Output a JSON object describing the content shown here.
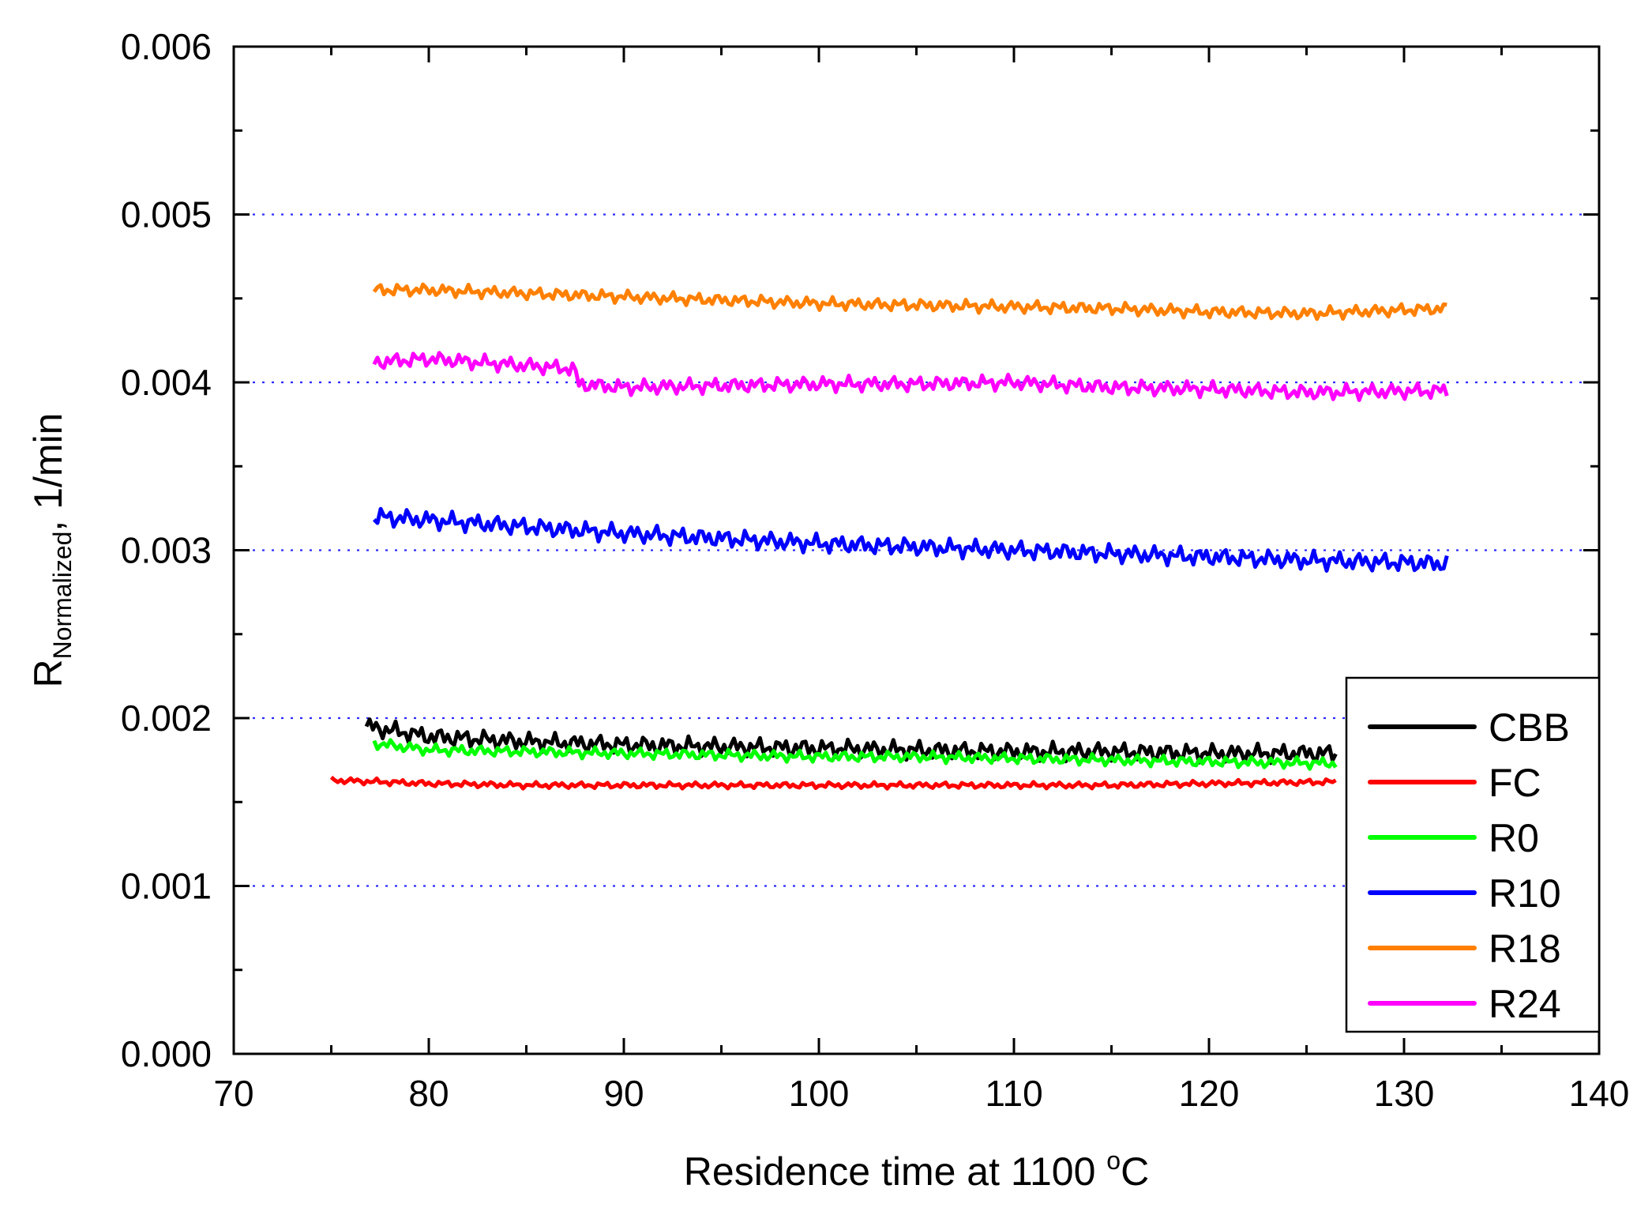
{
  "chart_data": {
    "type": "line",
    "title": "",
    "xlabel": "Residence time at 1100 °C",
    "xlabel_parts": {
      "text": "Residence time at 1100 ",
      "unit_sup": "o",
      "unit": "C"
    },
    "ylabel": "R_Normalized, 1/min",
    "ylabel_parts": {
      "main": "R",
      "sub": "Normalized",
      "tail": ", 1/min"
    },
    "xlim": [
      70,
      140
    ],
    "ylim": [
      0,
      0.006
    ],
    "xticks": [
      "70",
      "80",
      "90",
      "100",
      "110",
      "120",
      "130",
      "140"
    ],
    "yticks": [
      "0.000",
      "0.001",
      "0.002",
      "0.003",
      "0.004",
      "0.005",
      "0.006"
    ],
    "grid": "horizontal dotted",
    "legend_position": "bottom-right",
    "series": [
      {
        "name": "CBB",
        "color": "#000000",
        "x": [
          76.8,
          80,
          85,
          90,
          95,
          100,
          105,
          110,
          115,
          120,
          126.5
        ],
        "y": [
          0.00195,
          0.00189,
          0.00186,
          0.00184,
          0.00183,
          0.00182,
          0.00181,
          0.0018,
          0.0018,
          0.00179,
          0.00179
        ]
      },
      {
        "name": "FC",
        "color": "#ff0000",
        "x": [
          75,
          80,
          85,
          90,
          95,
          100,
          105,
          110,
          115,
          120,
          126.5
        ],
        "y": [
          0.00163,
          0.00161,
          0.0016,
          0.0016,
          0.0016,
          0.0016,
          0.0016,
          0.0016,
          0.0016,
          0.00161,
          0.00162
        ]
      },
      {
        "name": "R0",
        "color": "#00ff00",
        "x": [
          77.2,
          80,
          85,
          90,
          95,
          100,
          105,
          110,
          115,
          120,
          126.5
        ],
        "y": [
          0.00185,
          0.00181,
          0.0018,
          0.00179,
          0.00178,
          0.00177,
          0.00177,
          0.00176,
          0.00175,
          0.00174,
          0.00173
        ]
      },
      {
        "name": "R10",
        "color": "#0000ff",
        "x": [
          77.2,
          80,
          85,
          90,
          95,
          100,
          105,
          110,
          115,
          120,
          125,
          132.2
        ],
        "y": [
          0.0032,
          0.00318,
          0.00314,
          0.0031,
          0.00307,
          0.00304,
          0.00302,
          0.003,
          0.00298,
          0.00296,
          0.00294,
          0.00292
        ]
      },
      {
        "name": "R18",
        "color": "#ff8000",
        "x": [
          77.2,
          80,
          85,
          90,
          95,
          100,
          105,
          110,
          115,
          120,
          125,
          132.2
        ],
        "y": [
          0.00455,
          0.00455,
          0.00453,
          0.00451,
          0.00449,
          0.00447,
          0.00446,
          0.00445,
          0.00444,
          0.00442,
          0.00441,
          0.00444
        ]
      },
      {
        "name": "R24",
        "color": "#ff00ff",
        "x": [
          77.2,
          80,
          85,
          87.5,
          87.6,
          90,
          95,
          100,
          105,
          110,
          115,
          120,
          125,
          132.2
        ],
        "y": [
          0.00412,
          0.00414,
          0.0041,
          0.00408,
          0.00399,
          0.00397,
          0.00398,
          0.00399,
          0.00399,
          0.004,
          0.00397,
          0.00396,
          0.00394,
          0.00395
        ]
      }
    ]
  }
}
